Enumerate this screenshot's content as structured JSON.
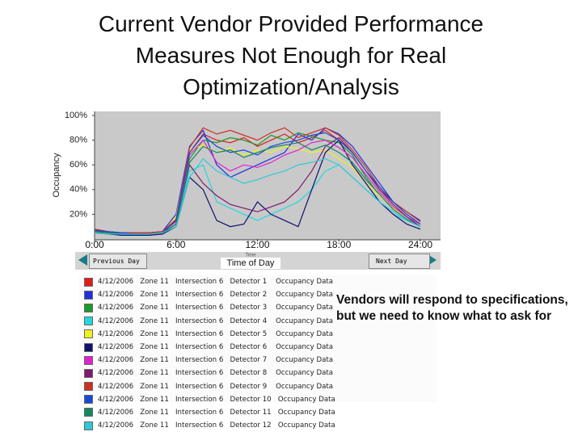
{
  "chart_data": {
    "type": "line",
    "title": "Current Vendor Provided Performance Measures Not Enough for Real Optimization/Analysis",
    "y_label": "Occupancy",
    "x_caption": "Time",
    "x_label": "Time of Day",
    "x": [
      0,
      1,
      2,
      3,
      4,
      5,
      6,
      7,
      8,
      9,
      10,
      11,
      12,
      13,
      14,
      15,
      16,
      17,
      18,
      19,
      20,
      21,
      22,
      23,
      24
    ],
    "xlim": [
      0,
      24
    ],
    "xticks": [
      {
        "value": 0,
        "label": "0:00"
      },
      {
        "value": 6,
        "label": "6:00"
      },
      {
        "value": 12,
        "label": "12:00"
      },
      {
        "value": 18,
        "label": "18:00"
      },
      {
        "value": 24,
        "label": "24:00"
      }
    ],
    "ylim": [
      0,
      100
    ],
    "yticks": [
      {
        "value": 20,
        "label": "20%"
      },
      {
        "value": 40,
        "label": "40%"
      },
      {
        "value": 60,
        "label": "60%"
      },
      {
        "value": 80,
        "label": "80%"
      },
      {
        "value": 100,
        "label": "100%"
      }
    ],
    "series": [
      {
        "name": "4/12/2006   Zone 11   Intersection 6   Detector 1    Occupancy Data",
        "color": "#e41a1a",
        "values": [
          8,
          6,
          5,
          5,
          5,
          6,
          15,
          70,
          85,
          80,
          78,
          82,
          75,
          80,
          85,
          78,
          82,
          88,
          80,
          70,
          55,
          40,
          30,
          20,
          12
        ]
      },
      {
        "name": "4/12/2006   Zone 11   Intersection 6   Detector 2    Occupancy Data",
        "color": "#2030e0",
        "values": [
          7,
          5,
          4,
          4,
          5,
          6,
          20,
          75,
          88,
          60,
          50,
          55,
          60,
          65,
          70,
          85,
          80,
          90,
          85,
          75,
          60,
          45,
          30,
          22,
          15
        ]
      },
      {
        "name": "4/12/2006   Zone 11   Intersection 6   Detector 3    Occupancy Data",
        "color": "#1a9a2a",
        "values": [
          6,
          5,
          5,
          4,
          4,
          5,
          12,
          65,
          80,
          78,
          82,
          80,
          76,
          84,
          80,
          86,
          83,
          80,
          78,
          68,
          50,
          35,
          25,
          18,
          10
        ]
      },
      {
        "name": "4/12/2006   Zone 11   Intersection 6   Detector 4    Occupancy Data",
        "color": "#20d8e0",
        "values": [
          5,
          4,
          4,
          3,
          4,
          5,
          10,
          55,
          60,
          30,
          25,
          20,
          15,
          20,
          25,
          30,
          40,
          55,
          60,
          50,
          40,
          30,
          20,
          15,
          10
        ]
      },
      {
        "name": "4/12/2006   Zone 11   Intersection 6   Detector 5    Occupancy Data",
        "color": "#f0f020",
        "values": [
          6,
          5,
          4,
          4,
          4,
          5,
          18,
          72,
          76,
          70,
          74,
          68,
          72,
          70,
          75,
          73,
          70,
          72,
          65,
          58,
          45,
          35,
          25,
          18,
          12
        ]
      },
      {
        "name": "4/12/2006   Zone 11   Intersection 6   Detector 6    Occupancy Data",
        "color": "#101070",
        "values": [
          5,
          4,
          3,
          3,
          3,
          4,
          10,
          50,
          40,
          15,
          10,
          12,
          30,
          20,
          15,
          10,
          40,
          70,
          80,
          60,
          45,
          30,
          20,
          12,
          8
        ]
      },
      {
        "name": "4/12/2006   Zone 11   Intersection 6   Detector 7    Occupancy Data",
        "color": "#e020d0",
        "values": [
          7,
          6,
          5,
          5,
          5,
          6,
          14,
          68,
          80,
          62,
          55,
          60,
          58,
          62,
          68,
          72,
          78,
          80,
          74,
          66,
          52,
          38,
          26,
          18,
          12
        ]
      },
      {
        "name": "4/12/2006   Zone 11   Intersection 6   Detector 8    Occupancy Data",
        "color": "#801870",
        "values": [
          6,
          5,
          4,
          4,
          4,
          5,
          12,
          60,
          45,
          35,
          28,
          25,
          22,
          26,
          30,
          40,
          55,
          75,
          82,
          70,
          55,
          40,
          28,
          18,
          10
        ]
      },
      {
        "name": "4/12/2006   Zone 11   Intersection 6   Detector 9    Occupancy Data",
        "color": "#d03020",
        "values": [
          8,
          6,
          5,
          5,
          5,
          6,
          16,
          74,
          90,
          85,
          88,
          84,
          80,
          86,
          90,
          82,
          86,
          90,
          84,
          72,
          58,
          42,
          30,
          22,
          14
        ]
      },
      {
        "name": "4/12/2006   Zone 11   Intersection 6   Detector 10   Occupancy Data",
        "color": "#1848d8",
        "values": [
          7,
          6,
          5,
          4,
          4,
          5,
          15,
          70,
          84,
          75,
          70,
          72,
          68,
          75,
          78,
          80,
          84,
          86,
          80,
          70,
          55,
          42,
          30,
          20,
          12
        ]
      },
      {
        "name": "4/12/2006   Zone 11   Intersection 6   Detector 11   Occupancy Data",
        "color": "#108860",
        "values": [
          6,
          5,
          4,
          4,
          4,
          5,
          12,
          62,
          75,
          70,
          72,
          66,
          70,
          74,
          76,
          78,
          72,
          76,
          70,
          62,
          48,
          36,
          24,
          16,
          10
        ]
      },
      {
        "name": "4/12/2006   Zone 11   Intersection 6   Detector 12   Occupancy Data",
        "color": "#30c8d8",
        "values": [
          5,
          4,
          4,
          4,
          4,
          5,
          10,
          50,
          65,
          55,
          50,
          45,
          48,
          52,
          55,
          60,
          62,
          65,
          60,
          50,
          40,
          30,
          22,
          15,
          10
        ]
      }
    ]
  },
  "controls": {
    "previous": "Previous Day",
    "next": "Next Day"
  },
  "note": "Vendors will respond to specifications, but we need to know what to ask for"
}
